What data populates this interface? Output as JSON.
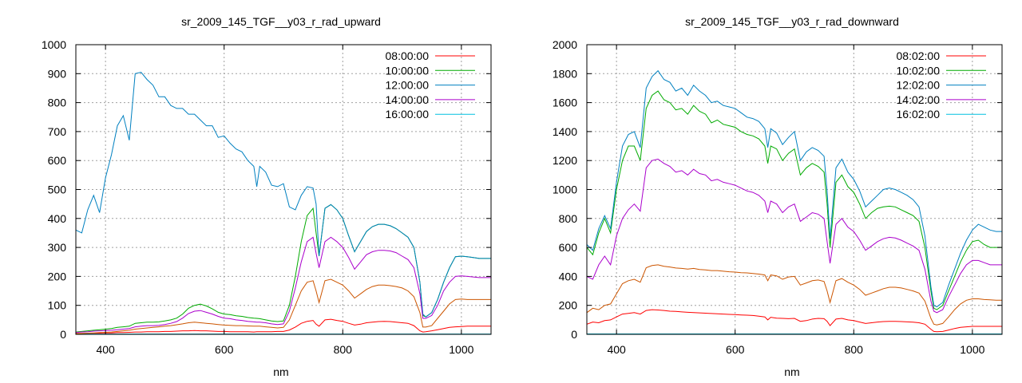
{
  "chart_data": [
    {
      "type": "line",
      "title": "sr_2009_145_TGF__y03_r_rad_upward",
      "xlabel": "nm",
      "ylabel": "",
      "xlim": [
        350,
        1050
      ],
      "ylim": [
        0,
        1000
      ],
      "xticks": [
        400,
        600,
        800,
        1000
      ],
      "yticks": [
        0,
        100,
        200,
        300,
        400,
        500,
        600,
        700,
        800,
        900,
        1000
      ],
      "grid": true,
      "legend": "top-right",
      "x": [
        350,
        360,
        370,
        380,
        390,
        400,
        410,
        420,
        430,
        440,
        450,
        460,
        470,
        480,
        490,
        500,
        510,
        520,
        530,
        540,
        550,
        560,
        570,
        580,
        590,
        600,
        610,
        620,
        630,
        640,
        650,
        655,
        660,
        670,
        680,
        690,
        700,
        710,
        720,
        730,
        740,
        750,
        755,
        760,
        770,
        780,
        790,
        800,
        810,
        820,
        830,
        840,
        850,
        860,
        870,
        880,
        890,
        900,
        910,
        920,
        930,
        935,
        940,
        950,
        960,
        970,
        980,
        990,
        1000,
        1010,
        1020,
        1030,
        1040,
        1050
      ],
      "series": [
        {
          "name": "08:00:00",
          "color": "#ff0000",
          "values": [
            3,
            3,
            3,
            4,
            4,
            5,
            5,
            6,
            6,
            7,
            8,
            8,
            9,
            9,
            9,
            10,
            10,
            11,
            12,
            12,
            13,
            12,
            12,
            11,
            10,
            10,
            9,
            9,
            9,
            9,
            8,
            9,
            9,
            9,
            9,
            10,
            10,
            15,
            25,
            38,
            45,
            48,
            35,
            28,
            50,
            52,
            48,
            45,
            38,
            32,
            35,
            40,
            42,
            44,
            45,
            44,
            42,
            40,
            38,
            30,
            12,
            8,
            9,
            12,
            16,
            20,
            24,
            26,
            27,
            28,
            28,
            28,
            28,
            28
          ]
        },
        {
          "name": "10:00:00",
          "color": "#00aa00",
          "values": [
            8,
            10,
            12,
            14,
            16,
            18,
            20,
            24,
            26,
            28,
            38,
            40,
            42,
            42,
            43,
            46,
            50,
            56,
            70,
            90,
            100,
            104,
            98,
            88,
            76,
            70,
            68,
            64,
            62,
            58,
            56,
            55,
            54,
            50,
            46,
            44,
            46,
            100,
            200,
            320,
            410,
            435,
            350,
            270,
            435,
            448,
            430,
            400,
            340,
            285,
            320,
            355,
            372,
            380,
            380,
            375,
            365,
            350,
            335,
            300,
            180,
            65,
            60,
            75,
            120,
            180,
            230,
            268,
            270,
            268,
            265,
            262,
            262,
            262
          ]
        },
        {
          "name": "12:00:00",
          "color": "#0080c0",
          "values": [
            360,
            350,
            430,
            480,
            420,
            540,
            620,
            720,
            755,
            670,
            900,
            905,
            880,
            860,
            820,
            820,
            790,
            780,
            780,
            760,
            760,
            740,
            720,
            720,
            680,
            685,
            660,
            640,
            630,
            600,
            580,
            510,
            580,
            560,
            515,
            510,
            520,
            440,
            430,
            480,
            510,
            505,
            450,
            270,
            435,
            448,
            430,
            400,
            340,
            285,
            320,
            355,
            372,
            380,
            380,
            375,
            365,
            350,
            335,
            300,
            180,
            70,
            60,
            75,
            120,
            180,
            230,
            268,
            270,
            268,
            265,
            262,
            262,
            262
          ]
        },
        {
          "name": "14:00:00",
          "color": "#aa00cc",
          "values": [
            6,
            8,
            9,
            11,
            12,
            13,
            14,
            16,
            18,
            20,
            26,
            28,
            30,
            30,
            31,
            34,
            38,
            44,
            56,
            72,
            80,
            82,
            76,
            70,
            62,
            56,
            54,
            50,
            48,
            45,
            43,
            42,
            42,
            40,
            36,
            34,
            36,
            80,
            160,
            250,
            320,
            335,
            280,
            230,
            320,
            335,
            320,
            300,
            265,
            225,
            250,
            275,
            285,
            290,
            290,
            288,
            282,
            270,
            258,
            230,
            140,
            55,
            55,
            65,
            100,
            150,
            180,
            200,
            202,
            200,
            198,
            196,
            196,
            196
          ]
        },
        {
          "name": "16:00:00",
          "color": "#00c0e0",
          "values": [
            1,
            1,
            1,
            1,
            1,
            1,
            1,
            1,
            1,
            1,
            1,
            1,
            1,
            1,
            1,
            1,
            1,
            1,
            1,
            1,
            1,
            1,
            1,
            1,
            1,
            1,
            1,
            1,
            1,
            1,
            1,
            1,
            1,
            1,
            1,
            1,
            1,
            1,
            1,
            1,
            1,
            1,
            1,
            1,
            1,
            1,
            1,
            1,
            1,
            1,
            1,
            1,
            1,
            1,
            1,
            1,
            1,
            1,
            1,
            1,
            1,
            1,
            1,
            1,
            1,
            1,
            1,
            1,
            1,
            1,
            1,
            1,
            1,
            1
          ]
        },
        {
          "name": "",
          "color": "#cc5500",
          "values": [
            2,
            3,
            4,
            5,
            6,
            7,
            8,
            10,
            12,
            14,
            18,
            20,
            22,
            24,
            26,
            28,
            30,
            33,
            36,
            40,
            42,
            40,
            38,
            36,
            34,
            32,
            31,
            30,
            30,
            29,
            28,
            28,
            28,
            26,
            24,
            22,
            24,
            50,
            100,
            150,
            180,
            185,
            150,
            110,
            185,
            190,
            180,
            170,
            150,
            125,
            140,
            155,
            165,
            170,
            170,
            168,
            165,
            160,
            150,
            130,
            75,
            25,
            25,
            30,
            55,
            80,
            105,
            120,
            122,
            120,
            120,
            120,
            120,
            120
          ]
        }
      ]
    },
    {
      "type": "line",
      "title": "sr_2009_145_TGF__y03_r_rad_downward",
      "xlabel": "nm",
      "ylabel": "",
      "xlim": [
        350,
        1050
      ],
      "ylim": [
        0,
        2000
      ],
      "xticks": [
        400,
        600,
        800,
        1000
      ],
      "yticks": [
        0,
        200,
        400,
        600,
        800,
        1000,
        1200,
        1400,
        1600,
        1800,
        2000
      ],
      "grid": true,
      "legend": "top-right",
      "x": [
        350,
        360,
        370,
        380,
        390,
        400,
        410,
        420,
        430,
        440,
        450,
        460,
        470,
        480,
        490,
        500,
        510,
        520,
        530,
        540,
        550,
        560,
        570,
        580,
        590,
        600,
        610,
        620,
        630,
        640,
        650,
        655,
        660,
        670,
        680,
        690,
        700,
        710,
        720,
        730,
        740,
        750,
        755,
        760,
        770,
        780,
        790,
        800,
        810,
        820,
        830,
        840,
        850,
        860,
        870,
        880,
        890,
        900,
        910,
        920,
        930,
        935,
        940,
        950,
        960,
        970,
        980,
        990,
        1000,
        1010,
        1020,
        1030,
        1040,
        1050
      ],
      "series": [
        {
          "name": "08:02:00",
          "color": "#ff0000",
          "values": [
            70,
            85,
            80,
            95,
            100,
            120,
            140,
            145,
            150,
            140,
            165,
            170,
            168,
            165,
            160,
            158,
            155,
            152,
            150,
            148,
            146,
            144,
            142,
            140,
            138,
            136,
            134,
            132,
            130,
            125,
            120,
            100,
            118,
            112,
            110,
            108,
            110,
            90,
            95,
            105,
            110,
            108,
            90,
            60,
            105,
            110,
            100,
            95,
            85,
            75,
            80,
            85,
            88,
            90,
            90,
            88,
            86,
            84,
            80,
            70,
            35,
            20,
            18,
            20,
            30,
            40,
            48,
            52,
            55,
            55,
            55,
            55,
            55,
            55
          ]
        },
        {
          "name": "10:02:00",
          "color": "#00aa00",
          "values": [
            600,
            550,
            700,
            800,
            700,
            1000,
            1200,
            1300,
            1300,
            1200,
            1560,
            1650,
            1680,
            1620,
            1600,
            1550,
            1560,
            1520,
            1580,
            1540,
            1520,
            1460,
            1480,
            1450,
            1440,
            1430,
            1400,
            1380,
            1370,
            1350,
            1300,
            1180,
            1300,
            1280,
            1200,
            1250,
            1280,
            1100,
            1150,
            1180,
            1160,
            1120,
            900,
            600,
            1050,
            1100,
            1020,
            980,
            900,
            800,
            840,
            870,
            880,
            885,
            880,
            860,
            840,
            820,
            780,
            600,
            300,
            180,
            170,
            200,
            300,
            400,
            500,
            580,
            640,
            650,
            620,
            600,
            600,
            600
          ]
        },
        {
          "name": "12:02:00",
          "color": "#0080c0",
          "values": [
            620,
            580,
            730,
            820,
            730,
            1050,
            1300,
            1380,
            1400,
            1290,
            1700,
            1780,
            1820,
            1760,
            1740,
            1680,
            1700,
            1650,
            1720,
            1680,
            1650,
            1600,
            1610,
            1580,
            1570,
            1560,
            1530,
            1500,
            1490,
            1470,
            1420,
            1290,
            1420,
            1390,
            1310,
            1360,
            1400,
            1200,
            1260,
            1290,
            1270,
            1230,
            990,
            660,
            1150,
            1210,
            1120,
            1070,
            990,
            880,
            920,
            960,
            1000,
            1010,
            1000,
            980,
            960,
            930,
            880,
            680,
            330,
            200,
            190,
            220,
            340,
            450,
            560,
            650,
            720,
            760,
            740,
            720,
            710,
            710
          ]
        },
        {
          "name": "14:02:00",
          "color": "#aa00cc",
          "values": [
            400,
            380,
            480,
            540,
            480,
            680,
            800,
            860,
            900,
            850,
            1150,
            1200,
            1210,
            1180,
            1160,
            1120,
            1130,
            1100,
            1140,
            1110,
            1100,
            1060,
            1070,
            1050,
            1040,
            1030,
            1010,
            990,
            980,
            960,
            920,
            840,
            920,
            900,
            840,
            880,
            900,
            780,
            810,
            840,
            830,
            800,
            640,
            490,
            760,
            800,
            740,
            710,
            650,
            580,
            610,
            640,
            660,
            670,
            665,
            650,
            630,
            610,
            580,
            450,
            230,
            160,
            150,
            170,
            260,
            340,
            420,
            480,
            510,
            510,
            495,
            480,
            480,
            480
          ]
        },
        {
          "name": "16:02:00",
          "color": "#00c0e0",
          "values": [
            3,
            3,
            3,
            3,
            3,
            3,
            3,
            3,
            3,
            3,
            3,
            3,
            3,
            3,
            3,
            3,
            3,
            3,
            3,
            3,
            3,
            3,
            3,
            3,
            3,
            3,
            3,
            3,
            3,
            3,
            3,
            3,
            3,
            3,
            3,
            3,
            3,
            3,
            3,
            3,
            3,
            3,
            3,
            3,
            3,
            3,
            3,
            3,
            3,
            3,
            3,
            3,
            3,
            3,
            3,
            3,
            3,
            3,
            3,
            3,
            3,
            3,
            3,
            3,
            3,
            3,
            3,
            3,
            3,
            3,
            3,
            3,
            3,
            3
          ]
        },
        {
          "name": "",
          "color": "#cc5500",
          "values": [
            150,
            180,
            170,
            200,
            210,
            280,
            350,
            370,
            380,
            360,
            460,
            475,
            480,
            470,
            465,
            458,
            455,
            450,
            455,
            448,
            445,
            440,
            440,
            436,
            432,
            430,
            426,
            424,
            420,
            416,
            410,
            370,
            410,
            404,
            380,
            396,
            400,
            340,
            355,
            370,
            375,
            365,
            300,
            220,
            370,
            385,
            360,
            340,
            310,
            270,
            285,
            300,
            315,
            325,
            325,
            320,
            310,
            300,
            285,
            230,
            110,
            70,
            65,
            75,
            120,
            170,
            210,
            235,
            245,
            245,
            240,
            238,
            236,
            235
          ]
        }
      ]
    }
  ]
}
